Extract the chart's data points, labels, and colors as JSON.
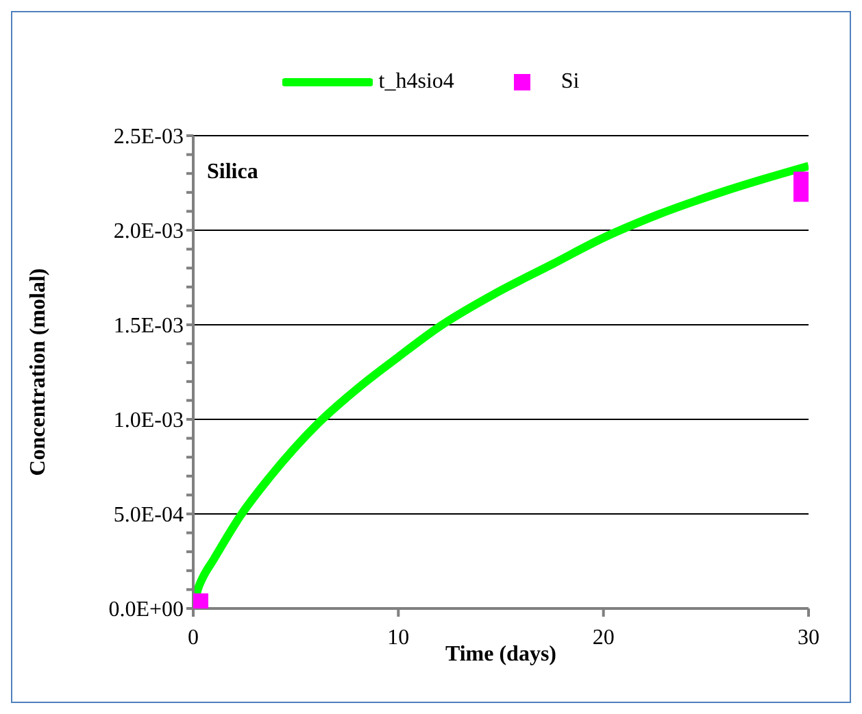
{
  "chart_data": {
    "type": "line",
    "xlabel": "Time (days)",
    "ylabel": "Concentration (molal)",
    "annotations": [
      "Silica"
    ],
    "xlim": [
      0,
      30
    ],
    "xticks": [
      0,
      10,
      20,
      30
    ],
    "ylim": [
      0,
      0.0025
    ],
    "yticks": [
      {
        "value": 0,
        "label": "0.0E+00"
      },
      {
        "value": 0.0001,
        "label": null
      },
      {
        "value": 0.0002,
        "label": null
      },
      {
        "value": 0.0003,
        "label": null
      },
      {
        "value": 0.0004,
        "label": null
      },
      {
        "value": 0.0005,
        "label": "5.0E-04"
      },
      {
        "value": 0.0006,
        "label": null
      },
      {
        "value": 0.0007,
        "label": null
      },
      {
        "value": 0.0008,
        "label": null
      },
      {
        "value": 0.0009,
        "label": null
      },
      {
        "value": 0.001,
        "label": "1.0E-03"
      },
      {
        "value": 0.0011,
        "label": null
      },
      {
        "value": 0.0012,
        "label": null
      },
      {
        "value": 0.0013,
        "label": null
      },
      {
        "value": 0.0014,
        "label": null
      },
      {
        "value": 0.0015,
        "label": "1.5E-03"
      },
      {
        "value": 0.0016,
        "label": null
      },
      {
        "value": 0.0017,
        "label": null
      },
      {
        "value": 0.0018,
        "label": null
      },
      {
        "value": 0.0019,
        "label": null
      },
      {
        "value": 0.002,
        "label": "2.0E-03"
      },
      {
        "value": 0.0021,
        "label": null
      },
      {
        "value": 0.0022,
        "label": null
      },
      {
        "value": 0.0023,
        "label": null
      },
      {
        "value": 0.0024,
        "label": null
      },
      {
        "value": 0.0025,
        "label": "2.5E-03"
      }
    ],
    "grid": "y",
    "legend": "top",
    "series": [
      {
        "name": "t_h4sio4",
        "marker": "none",
        "color": "#00ff00",
        "x": [
          0,
          0.22,
          0.45,
          1,
          2.3,
          3.7,
          6.1,
          8.2,
          10,
          12,
          14.8,
          17.5,
          20,
          22.6,
          26,
          30
        ],
        "values": [
          0,
          0.0001,
          0.00016,
          0.00026,
          0.00049,
          0.00069,
          0.00098,
          0.00118,
          0.00133,
          0.00149,
          0.00167,
          0.00182,
          0.00196,
          0.00208,
          0.00221,
          0.00234
        ]
      },
      {
        "name": "Si",
        "type": "scatter",
        "marker": "square",
        "color": "#ff00ff",
        "x": [
          0,
          30
        ],
        "values": [
          0,
          0.00223
        ]
      }
    ]
  }
}
